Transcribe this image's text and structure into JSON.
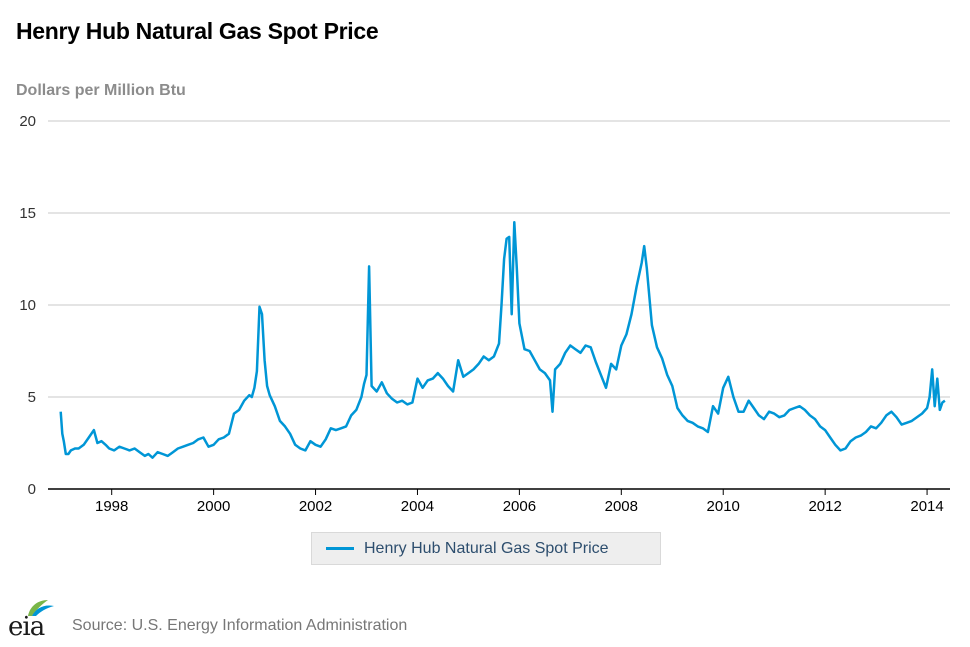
{
  "title": "Henry Hub Natural Gas Spot Price",
  "source": "Source: U.S. Energy Information Administration",
  "logo_text": "eia",
  "colors": {
    "line": "#0096d6",
    "grid": "#c8c8c8",
    "axis": "#000000"
  },
  "chart_data": {
    "type": "line",
    "title": "Henry Hub Natural Gas Spot Price",
    "ylabel": "Dollars per Million Btu",
    "xlabel": "",
    "ylim": [
      0,
      20
    ],
    "xlim": [
      1996.75,
      2014.45
    ],
    "yticks": [
      "0",
      "5",
      "10",
      "15",
      "20"
    ],
    "xticks": [
      "1998",
      "2000",
      "2002",
      "2004",
      "2006",
      "2008",
      "2010",
      "2012",
      "2014"
    ],
    "grid": true,
    "legend": "bottom-center",
    "series": [
      {
        "name": "Henry Hub Natural Gas Spot Price",
        "x": [
          1997.0,
          1997.03,
          1997.06,
          1997.1,
          1997.15,
          1997.2,
          1997.28,
          1997.35,
          1997.45,
          1997.55,
          1997.65,
          1997.72,
          1997.8,
          1997.88,
          1997.95,
          1998.05,
          1998.15,
          1998.25,
          1998.35,
          1998.45,
          1998.55,
          1998.65,
          1998.72,
          1998.8,
          1998.9,
          1999.0,
          1999.1,
          1999.2,
          1999.3,
          1999.4,
          1999.5,
          1999.6,
          1999.7,
          1999.8,
          1999.9,
          2000.0,
          2000.1,
          2000.2,
          2000.3,
          2000.4,
          2000.5,
          2000.6,
          2000.7,
          2000.75,
          2000.8,
          2000.85,
          2000.9,
          2000.95,
          2001.0,
          2001.05,
          2001.1,
          2001.2,
          2001.3,
          2001.4,
          2001.5,
          2001.6,
          2001.7,
          2001.8,
          2001.9,
          2002.0,
          2002.1,
          2002.2,
          2002.3,
          2002.4,
          2002.5,
          2002.6,
          2002.7,
          2002.8,
          2002.9,
          2002.95,
          2003.0,
          2003.05,
          2003.1,
          2003.2,
          2003.3,
          2003.4,
          2003.5,
          2003.6,
          2003.7,
          2003.8,
          2003.9,
          2004.0,
          2004.1,
          2004.2,
          2004.3,
          2004.4,
          2004.5,
          2004.6,
          2004.7,
          2004.8,
          2004.9,
          2005.0,
          2005.1,
          2005.2,
          2005.3,
          2005.4,
          2005.5,
          2005.6,
          2005.65,
          2005.7,
          2005.75,
          2005.8,
          2005.85,
          2005.9,
          2005.95,
          2006.0,
          2006.1,
          2006.2,
          2006.3,
          2006.4,
          2006.5,
          2006.6,
          2006.65,
          2006.7,
          2006.8,
          2006.9,
          2007.0,
          2007.1,
          2007.2,
          2007.3,
          2007.4,
          2007.5,
          2007.6,
          2007.7,
          2007.8,
          2007.9,
          2008.0,
          2008.1,
          2008.2,
          2008.3,
          2008.4,
          2008.45,
          2008.5,
          2008.6,
          2008.7,
          2008.8,
          2008.9,
          2009.0,
          2009.1,
          2009.2,
          2009.3,
          2009.4,
          2009.5,
          2009.6,
          2009.7,
          2009.8,
          2009.9,
          2010.0,
          2010.1,
          2010.2,
          2010.3,
          2010.4,
          2010.5,
          2010.6,
          2010.7,
          2010.8,
          2010.9,
          2011.0,
          2011.1,
          2011.2,
          2011.3,
          2011.4,
          2011.5,
          2011.6,
          2011.7,
          2011.8,
          2011.9,
          2012.0,
          2012.1,
          2012.2,
          2012.3,
          2012.4,
          2012.5,
          2012.6,
          2012.7,
          2012.8,
          2012.9,
          2013.0,
          2013.1,
          2013.2,
          2013.3,
          2013.4,
          2013.5,
          2013.6,
          2013.7,
          2013.8,
          2013.9,
          2014.0,
          2014.05,
          2014.1,
          2014.15,
          2014.2,
          2014.25,
          2014.3,
          2014.35
        ],
        "values": [
          4.2,
          3.0,
          2.6,
          1.9,
          1.9,
          2.1,
          2.2,
          2.2,
          2.4,
          2.8,
          3.2,
          2.5,
          2.6,
          2.4,
          2.2,
          2.1,
          2.3,
          2.2,
          2.1,
          2.2,
          2.0,
          1.8,
          1.9,
          1.7,
          2.0,
          1.9,
          1.8,
          2.0,
          2.2,
          2.3,
          2.4,
          2.5,
          2.7,
          2.8,
          2.3,
          2.4,
          2.7,
          2.8,
          3.0,
          4.1,
          4.3,
          4.8,
          5.1,
          5.0,
          5.5,
          6.4,
          9.9,
          9.5,
          7.0,
          5.6,
          5.1,
          4.5,
          3.7,
          3.4,
          3.0,
          2.4,
          2.2,
          2.1,
          2.6,
          2.4,
          2.3,
          2.7,
          3.3,
          3.2,
          3.3,
          3.4,
          4.0,
          4.3,
          5.0,
          5.7,
          6.2,
          12.1,
          5.6,
          5.3,
          5.8,
          5.2,
          4.9,
          4.7,
          4.8,
          4.6,
          4.7,
          6.0,
          5.5,
          5.9,
          6.0,
          6.3,
          6.0,
          5.6,
          5.3,
          7.0,
          6.1,
          6.3,
          6.5,
          6.8,
          7.2,
          7.0,
          7.2,
          7.9,
          10.0,
          12.5,
          13.6,
          13.7,
          9.5,
          14.5,
          12.0,
          9.0,
          7.6,
          7.5,
          7.0,
          6.5,
          6.3,
          5.9,
          4.2,
          6.5,
          6.8,
          7.4,
          7.8,
          7.6,
          7.4,
          7.8,
          7.7,
          6.9,
          6.2,
          5.5,
          6.8,
          6.5,
          7.8,
          8.4,
          9.5,
          11.0,
          12.3,
          13.2,
          12.0,
          8.9,
          7.7,
          7.1,
          6.2,
          5.6,
          4.4,
          4.0,
          3.7,
          3.6,
          3.4,
          3.3,
          3.1,
          4.5,
          4.1,
          5.5,
          6.1,
          5.0,
          4.2,
          4.2,
          4.8,
          4.4,
          4.0,
          3.8,
          4.2,
          4.1,
          3.9,
          4.0,
          4.3,
          4.4,
          4.5,
          4.3,
          4.0,
          3.8,
          3.4,
          3.2,
          2.8,
          2.4,
          2.1,
          2.2,
          2.6,
          2.8,
          2.9,
          3.1,
          3.4,
          3.3,
          3.6,
          4.0,
          4.2,
          3.9,
          3.5,
          3.6,
          3.7,
          3.9,
          4.1,
          4.4,
          5.0,
          6.5,
          4.5,
          6.0,
          4.3,
          4.7,
          4.8
        ]
      }
    ]
  },
  "legend": {
    "label": "Henry Hub Natural Gas Spot Price"
  }
}
